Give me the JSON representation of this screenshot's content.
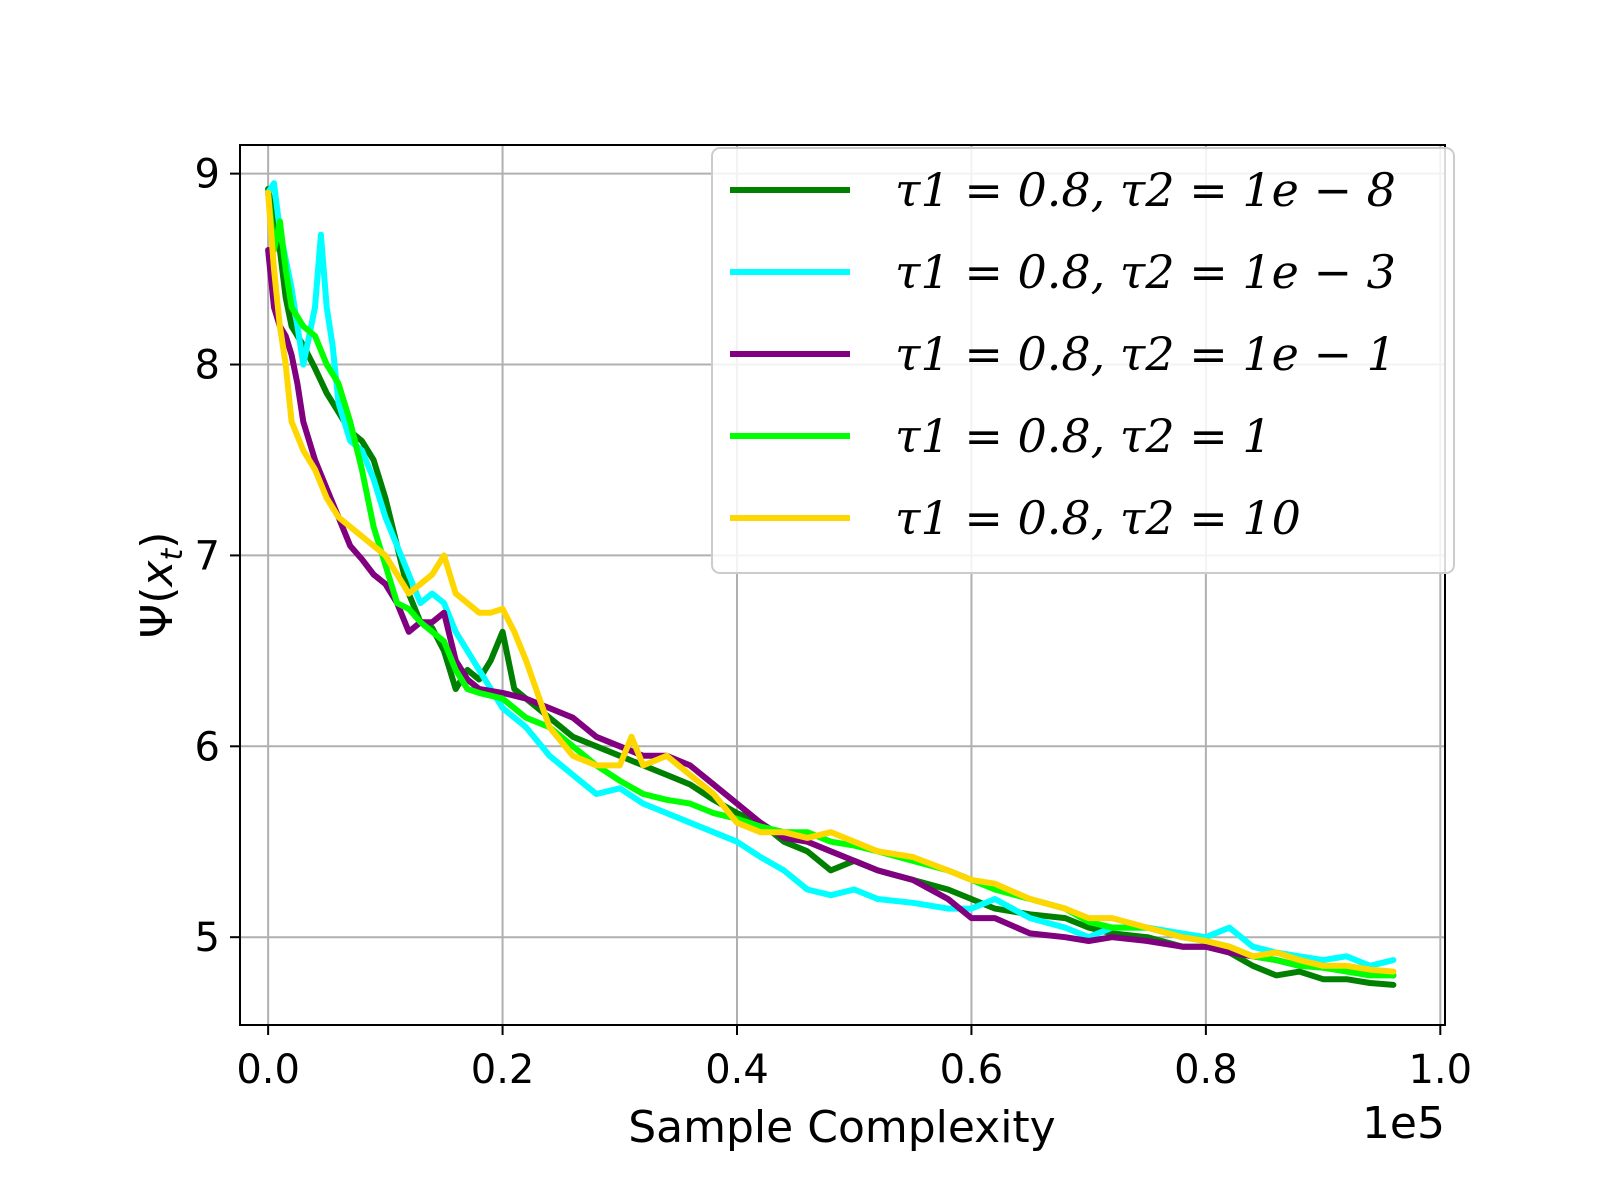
{
  "chart_data": {
    "type": "line",
    "title": "",
    "xlabel": "Sample Complexity",
    "ylabel": "Ψ(x_t)",
    "x_offset_label": "1e5",
    "xlim": [
      -0.024,
      1.004
    ],
    "ylim": [
      4.54,
      9.15
    ],
    "xticks": [
      0.0,
      0.2,
      0.4,
      0.6,
      0.8,
      1.0
    ],
    "xtick_labels": [
      "0.0",
      "0.2",
      "0.4",
      "0.6",
      "0.8",
      "1.0"
    ],
    "yticks": [
      5,
      6,
      7,
      8,
      9
    ],
    "ytick_labels": [
      "5",
      "6",
      "7",
      "8",
      "9"
    ],
    "grid": true,
    "legend_position": "top-right",
    "series": [
      {
        "name": "τ1 = 0.8, τ2 = 1e − 8",
        "color": "#008000",
        "x": [
          0.0,
          0.005,
          0.01,
          0.015,
          0.02,
          0.03,
          0.04,
          0.05,
          0.06,
          0.07,
          0.08,
          0.09,
          0.1,
          0.11,
          0.12,
          0.13,
          0.14,
          0.15,
          0.16,
          0.17,
          0.18,
          0.19,
          0.2,
          0.21,
          0.22,
          0.24,
          0.26,
          0.28,
          0.3,
          0.32,
          0.34,
          0.36,
          0.38,
          0.4,
          0.42,
          0.44,
          0.46,
          0.48,
          0.5,
          0.52,
          0.55,
          0.58,
          0.6,
          0.62,
          0.65,
          0.68,
          0.7,
          0.72,
          0.75,
          0.78,
          0.8,
          0.82,
          0.84,
          0.86,
          0.88,
          0.9,
          0.92,
          0.94,
          0.96
        ],
        "y": [
          8.92,
          8.75,
          8.6,
          8.35,
          8.2,
          8.1,
          7.98,
          7.85,
          7.75,
          7.65,
          7.6,
          7.5,
          7.3,
          7.05,
          6.8,
          6.65,
          6.62,
          6.5,
          6.3,
          6.4,
          6.35,
          6.45,
          6.6,
          6.3,
          6.25,
          6.15,
          6.05,
          6.0,
          5.95,
          5.9,
          5.85,
          5.8,
          5.72,
          5.65,
          5.6,
          5.5,
          5.45,
          5.35,
          5.4,
          5.35,
          5.3,
          5.25,
          5.2,
          5.15,
          5.12,
          5.1,
          5.05,
          5.02,
          5.0,
          4.95,
          4.95,
          4.92,
          4.85,
          4.8,
          4.82,
          4.78,
          4.78,
          4.76,
          4.75
        ]
      },
      {
        "name": "τ1 = 0.8, τ2 = 1e − 3",
        "color": "#00ffff",
        "x": [
          0.0,
          0.005,
          0.01,
          0.02,
          0.03,
          0.04,
          0.045,
          0.05,
          0.055,
          0.06,
          0.07,
          0.08,
          0.09,
          0.1,
          0.11,
          0.12,
          0.13,
          0.14,
          0.15,
          0.16,
          0.18,
          0.2,
          0.22,
          0.24,
          0.26,
          0.28,
          0.3,
          0.32,
          0.34,
          0.36,
          0.38,
          0.4,
          0.42,
          0.44,
          0.46,
          0.48,
          0.5,
          0.52,
          0.55,
          0.58,
          0.6,
          0.62,
          0.65,
          0.68,
          0.7,
          0.72,
          0.75,
          0.78,
          0.8,
          0.82,
          0.84,
          0.86,
          0.88,
          0.9,
          0.92,
          0.94,
          0.96
        ],
        "y": [
          8.9,
          8.95,
          8.7,
          8.4,
          8.0,
          8.3,
          8.68,
          8.3,
          8.1,
          7.8,
          7.6,
          7.55,
          7.4,
          7.2,
          7.05,
          6.9,
          6.75,
          6.8,
          6.75,
          6.6,
          6.4,
          6.2,
          6.1,
          5.95,
          5.85,
          5.75,
          5.78,
          5.7,
          5.65,
          5.6,
          5.55,
          5.5,
          5.42,
          5.35,
          5.25,
          5.22,
          5.25,
          5.2,
          5.18,
          5.15,
          5.15,
          5.2,
          5.1,
          5.05,
          5.0,
          5.05,
          5.05,
          5.02,
          5.0,
          5.05,
          4.95,
          4.92,
          4.9,
          4.88,
          4.9,
          4.85,
          4.88
        ]
      },
      {
        "name": "τ1 = 0.8, τ2 = 1e − 1",
        "color": "#800080",
        "x": [
          0.0,
          0.005,
          0.01,
          0.015,
          0.02,
          0.025,
          0.03,
          0.04,
          0.05,
          0.06,
          0.07,
          0.08,
          0.09,
          0.1,
          0.11,
          0.12,
          0.13,
          0.14,
          0.15,
          0.16,
          0.17,
          0.18,
          0.2,
          0.22,
          0.24,
          0.26,
          0.28,
          0.3,
          0.32,
          0.34,
          0.36,
          0.38,
          0.4,
          0.42,
          0.44,
          0.46,
          0.48,
          0.5,
          0.52,
          0.55,
          0.58,
          0.6,
          0.62,
          0.65,
          0.68,
          0.7,
          0.72,
          0.75,
          0.78,
          0.8,
          0.82,
          0.84,
          0.86,
          0.88,
          0.9,
          0.92,
          0.94,
          0.96
        ],
        "y": [
          8.6,
          8.3,
          8.2,
          8.15,
          8.05,
          7.9,
          7.7,
          7.5,
          7.35,
          7.2,
          7.05,
          6.98,
          6.9,
          6.85,
          6.75,
          6.6,
          6.65,
          6.65,
          6.7,
          6.45,
          6.35,
          6.3,
          6.28,
          6.25,
          6.2,
          6.15,
          6.05,
          6.0,
          5.95,
          5.95,
          5.9,
          5.8,
          5.7,
          5.6,
          5.52,
          5.5,
          5.45,
          5.4,
          5.35,
          5.3,
          5.2,
          5.1,
          5.1,
          5.02,
          5.0,
          4.98,
          5.0,
          4.98,
          4.95,
          4.95,
          4.92,
          4.9,
          4.88,
          4.85,
          4.85,
          4.83,
          4.82,
          4.8
        ]
      },
      {
        "name": "τ1 = 0.8, τ2 = 1",
        "color": "#00ff00",
        "x": [
          0.0,
          0.005,
          0.01,
          0.015,
          0.02,
          0.03,
          0.04,
          0.05,
          0.06,
          0.07,
          0.08,
          0.09,
          0.1,
          0.11,
          0.12,
          0.13,
          0.14,
          0.15,
          0.16,
          0.17,
          0.18,
          0.2,
          0.22,
          0.24,
          0.26,
          0.28,
          0.3,
          0.32,
          0.34,
          0.36,
          0.38,
          0.4,
          0.42,
          0.44,
          0.46,
          0.48,
          0.5,
          0.52,
          0.55,
          0.58,
          0.6,
          0.62,
          0.65,
          0.68,
          0.7,
          0.72,
          0.75,
          0.78,
          0.8,
          0.82,
          0.84,
          0.86,
          0.88,
          0.9,
          0.92,
          0.94,
          0.96
        ],
        "y": [
          8.9,
          8.6,
          8.75,
          8.5,
          8.3,
          8.2,
          8.15,
          8.0,
          7.9,
          7.7,
          7.45,
          7.15,
          6.95,
          6.75,
          6.72,
          6.65,
          6.6,
          6.55,
          6.4,
          6.3,
          6.28,
          6.25,
          6.15,
          6.1,
          6.0,
          5.9,
          5.82,
          5.75,
          5.72,
          5.7,
          5.65,
          5.62,
          5.58,
          5.55,
          5.55,
          5.5,
          5.48,
          5.45,
          5.4,
          5.35,
          5.3,
          5.25,
          5.2,
          5.15,
          5.08,
          5.05,
          5.05,
          5.0,
          4.98,
          4.95,
          4.9,
          4.88,
          4.85,
          4.84,
          4.82,
          4.8,
          4.8
        ]
      },
      {
        "name": "τ1 = 0.8, τ2 = 10",
        "color": "#ffd700",
        "x": [
          0.0,
          0.005,
          0.01,
          0.015,
          0.02,
          0.03,
          0.04,
          0.05,
          0.06,
          0.07,
          0.08,
          0.09,
          0.1,
          0.11,
          0.12,
          0.13,
          0.14,
          0.15,
          0.16,
          0.17,
          0.18,
          0.19,
          0.2,
          0.21,
          0.22,
          0.24,
          0.26,
          0.28,
          0.3,
          0.31,
          0.32,
          0.34,
          0.36,
          0.38,
          0.4,
          0.42,
          0.44,
          0.46,
          0.48,
          0.5,
          0.52,
          0.55,
          0.58,
          0.6,
          0.62,
          0.65,
          0.68,
          0.7,
          0.72,
          0.75,
          0.78,
          0.8,
          0.82,
          0.84,
          0.86,
          0.88,
          0.9,
          0.92,
          0.94,
          0.96
        ],
        "y": [
          8.9,
          8.5,
          8.2,
          8.0,
          7.7,
          7.55,
          7.45,
          7.3,
          7.2,
          7.15,
          7.1,
          7.05,
          7.0,
          6.9,
          6.8,
          6.85,
          6.9,
          7.0,
          6.8,
          6.75,
          6.7,
          6.7,
          6.72,
          6.6,
          6.45,
          6.1,
          5.95,
          5.9,
          5.9,
          6.05,
          5.9,
          5.95,
          5.85,
          5.75,
          5.6,
          5.55,
          5.55,
          5.52,
          5.55,
          5.5,
          5.45,
          5.42,
          5.35,
          5.3,
          5.28,
          5.2,
          5.15,
          5.1,
          5.1,
          5.05,
          5.0,
          4.98,
          4.95,
          4.9,
          4.92,
          4.88,
          4.85,
          4.85,
          4.83,
          4.82
        ]
      }
    ]
  }
}
